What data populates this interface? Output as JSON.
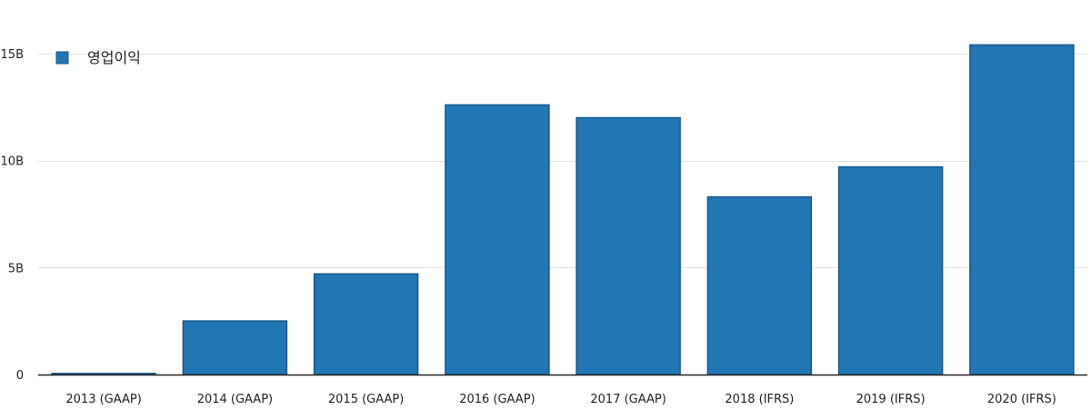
{
  "chart_data": {
    "type": "bar",
    "categories": [
      "2013 (GAAP)",
      "2014 (GAAP)",
      "2015 (GAAP)",
      "2016 (GAAP)",
      "2017 (GAAP)",
      "2018 (IFRS)",
      "2019 (IFRS)",
      "2020 (IFRS)"
    ],
    "series": [
      {
        "name": "영업이익",
        "values": [
          0.05,
          2.5,
          4.7,
          12.6,
          12.0,
          8.3,
          9.7,
          15.4
        ]
      }
    ],
    "value_unit": "B",
    "title": "",
    "xlabel": "",
    "ylabel": "",
    "ylim": [
      0,
      17.5
    ],
    "yticks": [
      0,
      5,
      10,
      15
    ],
    "ytick_labels": [
      "0",
      "5B",
      "10B",
      "15B"
    ],
    "grid": true,
    "legend_position": "top-left",
    "bar_color": "#2176b4",
    "bar_edge_color": "#15588f",
    "grid_color": "#e3e3e3",
    "axis_color": "#222222"
  }
}
